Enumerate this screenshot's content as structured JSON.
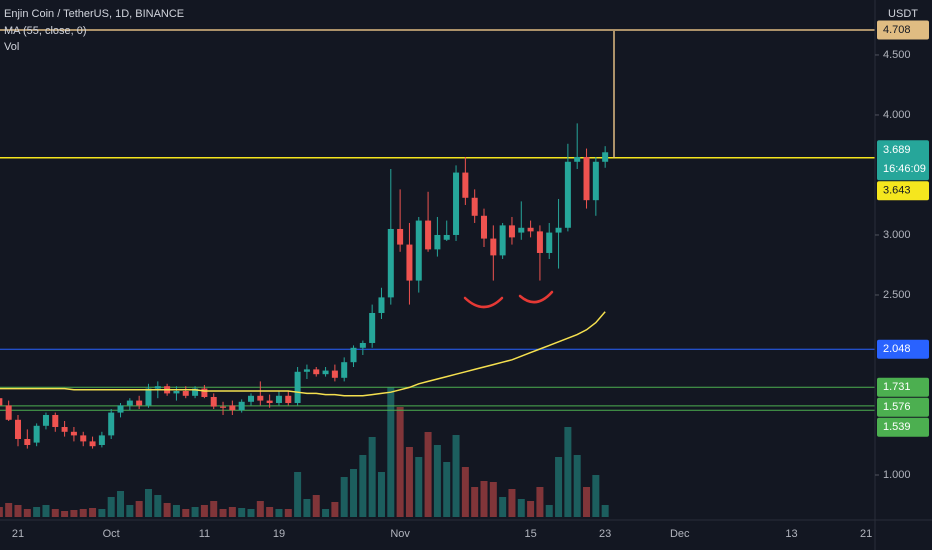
{
  "chart_data": {
    "type": "candlestick",
    "title": "Enjin Coin / TetherUS, 1D, BINANCE",
    "indicator_label": "MA (55, close, 0)",
    "volume_label": "Vol",
    "currency": "USDT",
    "countdown": "16:46:09",
    "up_color": "#26a69a",
    "down_color": "#ef5350",
    "ma_color": "#f5e04f",
    "ylim": [
      0.625,
      4.958
    ],
    "yticks": [
      {
        "value": 1,
        "label": "1.000"
      },
      {
        "value": 2.5,
        "label": "2.500"
      },
      {
        "value": 3,
        "label": "3.000"
      },
      {
        "value": 4,
        "label": "4.000"
      },
      {
        "value": 4.5,
        "label": "4.500"
      }
    ],
    "levels": [
      {
        "value": 4.708,
        "color": "#e0bc82"
      },
      {
        "value": 3.643,
        "color": "#f5e61e"
      },
      {
        "value": 2.048,
        "color": "#2962ff"
      },
      {
        "value": 1.731,
        "color": "#4caf50"
      },
      {
        "value": 1.576,
        "color": "#4caf50"
      },
      {
        "value": 1.539,
        "color": "#4caf50"
      }
    ],
    "categories": [
      null,
      null,
      "21",
      null,
      null,
      null,
      null,
      null,
      null,
      null,
      null,
      null,
      "Oct",
      null,
      null,
      null,
      null,
      null,
      null,
      null,
      null,
      null,
      "11",
      null,
      null,
      null,
      null,
      null,
      null,
      null,
      "19",
      null,
      null,
      null,
      null,
      null,
      null,
      null,
      null,
      null,
      null,
      null,
      null,
      "Nov",
      null,
      null,
      null,
      null,
      null,
      null,
      null,
      null,
      null,
      null,
      null,
      null,
      null,
      "15",
      null,
      null,
      null,
      null,
      null,
      null,
      null,
      "23",
      null,
      null,
      null,
      null,
      null,
      null,
      null,
      "Dec",
      null,
      null,
      null,
      null,
      null,
      null,
      null,
      null,
      null,
      null,
      null,
      "13",
      null,
      null,
      null,
      null,
      null,
      null,
      null,
      "21"
    ],
    "open": [
      1.64,
      1.58,
      1.46,
      1.3,
      1.27,
      1.41,
      1.5,
      1.4,
      1.36,
      1.33,
      1.28,
      1.25,
      1.33,
      1.52,
      1.58,
      1.62,
      1.58,
      1.72,
      1.74,
      1.68,
      1.7,
      1.66,
      1.72,
      1.65,
      1.57,
      1.58,
      1.54,
      1.61,
      1.66,
      1.62,
      1.6,
      1.66,
      1.6,
      1.86,
      1.88,
      1.84,
      1.87,
      1.81,
      1.94,
      2.06,
      2.1,
      2.35,
      2.48,
      3.05,
      2.92,
      2.62,
      3.12,
      2.88,
      2.96,
      3.0,
      3.52,
      3.31,
      3.16,
      2.97,
      2.83,
      3.08,
      3.02,
      3.06,
      3.03,
      2.85,
      3.02,
      3.06,
      3.61,
      3.65,
      3.29,
      3.61,
      null,
      null,
      null,
      null,
      null,
      null,
      null,
      null,
      null,
      null,
      null,
      null,
      null,
      null,
      null,
      null,
      null,
      null,
      null,
      null,
      null,
      null,
      null,
      null,
      null,
      null,
      null,
      null
    ],
    "high": [
      1.7,
      1.62,
      1.5,
      1.38,
      1.43,
      1.52,
      1.52,
      1.45,
      1.4,
      1.36,
      1.32,
      1.36,
      1.55,
      1.6,
      1.64,
      1.66,
      1.76,
      1.78,
      1.76,
      1.74,
      1.74,
      1.74,
      1.75,
      1.68,
      1.61,
      1.62,
      1.63,
      1.68,
      1.78,
      1.67,
      1.7,
      1.7,
      1.9,
      1.92,
      1.9,
      1.9,
      1.92,
      1.98,
      2.08,
      2.12,
      2.42,
      2.56,
      3.55,
      3.38,
      3.1,
      3.15,
      3.36,
      3.15,
      3.12,
      3.58,
      3.65,
      3.38,
      3.22,
      3.08,
      3.1,
      3.15,
      3.28,
      3.12,
      3.08,
      3.1,
      3.3,
      3.76,
      3.93,
      3.72,
      3.65,
      3.74,
      null,
      null,
      null,
      null,
      null,
      null,
      null,
      null,
      null,
      null,
      null,
      null,
      null,
      null,
      null,
      null,
      null,
      null,
      null,
      null,
      null,
      null,
      null,
      null,
      null,
      null,
      null,
      null
    ],
    "low": [
      1.58,
      1.45,
      1.24,
      1.22,
      1.24,
      1.38,
      1.36,
      1.32,
      1.28,
      1.24,
      1.22,
      1.23,
      1.3,
      1.48,
      1.54,
      1.55,
      1.56,
      1.64,
      1.66,
      1.62,
      1.64,
      1.64,
      1.64,
      1.55,
      1.5,
      1.5,
      1.52,
      1.58,
      1.58,
      1.56,
      1.58,
      1.58,
      1.58,
      1.8,
      1.82,
      1.82,
      1.78,
      1.78,
      1.9,
      2.0,
      2.06,
      2.3,
      2.42,
      2.86,
      2.42,
      2.52,
      2.86,
      2.82,
      2.95,
      2.95,
      3.25,
      3.1,
      2.9,
      2.62,
      2.8,
      2.92,
      2.96,
      2.98,
      2.62,
      2.8,
      2.72,
      3.03,
      3.55,
      3.22,
      3.16,
      3.56,
      null,
      null,
      null,
      null,
      null,
      null,
      null,
      null,
      null,
      null,
      null,
      null,
      null,
      null,
      null,
      null,
      null,
      null,
      null,
      null,
      null,
      null,
      null,
      null,
      null,
      null,
      null,
      null
    ],
    "close": [
      1.58,
      1.46,
      1.3,
      1.25,
      1.41,
      1.5,
      1.4,
      1.36,
      1.33,
      1.28,
      1.24,
      1.33,
      1.52,
      1.58,
      1.62,
      1.58,
      1.72,
      1.74,
      1.68,
      1.7,
      1.66,
      1.72,
      1.65,
      1.57,
      1.56,
      1.54,
      1.61,
      1.66,
      1.62,
      1.6,
      1.66,
      1.6,
      1.86,
      1.88,
      1.84,
      1.87,
      1.81,
      1.94,
      2.06,
      2.1,
      2.35,
      2.48,
      3.05,
      2.92,
      2.62,
      3.12,
      2.88,
      3.0,
      3.0,
      3.52,
      3.31,
      3.16,
      2.97,
      2.83,
      3.08,
      2.98,
      3.06,
      3.03,
      2.85,
      3.02,
      3.06,
      3.61,
      3.65,
      3.29,
      3.61,
      3.689,
      null,
      null,
      null,
      null,
      null,
      null,
      null,
      null,
      null,
      null,
      null,
      null,
      null,
      null,
      null,
      null,
      null,
      null,
      null,
      null,
      null,
      null,
      null,
      null,
      null,
      null,
      null,
      null
    ],
    "volume": [
      10,
      14,
      12,
      8,
      10,
      12,
      8,
      6,
      7,
      8,
      9,
      8,
      20,
      26,
      12,
      16,
      28,
      22,
      14,
      12,
      8,
      10,
      12,
      16,
      8,
      10,
      9,
      8,
      16,
      10,
      8,
      8,
      45,
      18,
      22,
      8,
      15,
      40,
      48,
      62,
      80,
      45,
      130,
      110,
      70,
      60,
      85,
      72,
      55,
      82,
      50,
      30,
      36,
      35,
      20,
      28,
      18,
      16,
      30,
      12,
      60,
      90,
      62,
      30,
      42,
      12,
      null,
      null,
      null,
      null,
      null,
      null,
      null,
      null,
      null,
      null,
      null,
      null,
      null,
      null,
      null,
      null,
      null,
      null,
      null,
      null,
      null,
      null,
      null,
      null,
      null,
      null,
      null,
      null
    ],
    "ma": [
      1.72,
      1.72,
      1.72,
      1.72,
      1.72,
      1.72,
      1.72,
      1.72,
      1.71,
      1.71,
      1.71,
      1.71,
      1.71,
      1.71,
      1.71,
      1.71,
      1.71,
      1.71,
      1.71,
      1.71,
      1.71,
      1.71,
      1.7,
      1.7,
      1.7,
      1.7,
      1.7,
      1.7,
      1.7,
      1.7,
      1.7,
      1.7,
      1.69,
      1.68,
      1.68,
      1.67,
      1.67,
      1.66,
      1.66,
      1.66,
      1.67,
      1.68,
      1.69,
      1.71,
      1.73,
      1.76,
      1.78,
      1.8,
      1.82,
      1.84,
      1.86,
      1.88,
      1.9,
      1.92,
      1.94,
      1.96,
      1.99,
      2.02,
      2.05,
      2.08,
      2.11,
      2.14,
      2.17,
      2.21,
      2.27,
      2.36,
      null,
      null,
      null,
      null,
      null,
      null,
      null,
      null,
      null,
      null,
      null,
      null,
      null,
      null,
      null,
      null,
      null,
      null,
      null,
      null,
      null,
      null,
      null,
      null,
      null,
      null,
      null,
      null
    ]
  }
}
